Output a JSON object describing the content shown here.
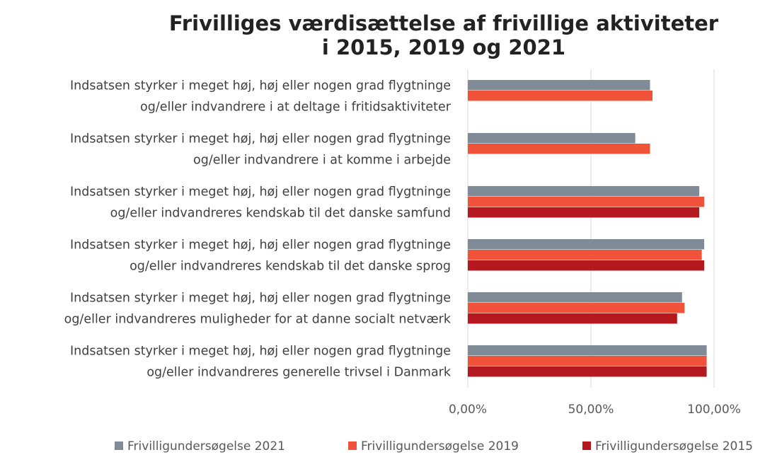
{
  "chart_data": {
    "type": "barh",
    "title": [
      "Frivilliges værdisættelse af frivillige aktiviteter",
      "i 2015, 2019 og 2021"
    ],
    "categories": [
      [
        "Indsatsen styrker i meget høj, høj eller nogen grad flygtninge",
        "og/eller indvandrere i at deltage i fritidsaktiviteter"
      ],
      [
        "Indsatsen styrker i meget høj, høj eller nogen grad flygtninge",
        "og/eller indvandrere i at komme i arbejde"
      ],
      [
        "Indsatsen styrker i meget høj, høj eller nogen grad flygtninge",
        "og/eller indvandreres kendskab til det danske samfund"
      ],
      [
        "Indsatsen styrker i meget høj, høj eller nogen grad flygtninge",
        "og/eller indvandreres kendskab til det danske sprog"
      ],
      [
        "Indsatsen styrker i meget høj, høj eller nogen grad flygtninge",
        "og/eller indvandreres muligheder for at danne socialt netværk"
      ],
      [
        "Indsatsen styrker i meget høj, høj eller nogen grad flygtninge",
        "og/eller indvandreres generelle trivsel i Danmark"
      ]
    ],
    "series": [
      {
        "name": "Frivilligundersøgelse 2021",
        "color": "#7f8c97",
        "values": [
          74,
          68,
          94,
          96,
          87,
          97
        ]
      },
      {
        "name": "Frivilligundersøgelse 2019",
        "color": "#f0533a",
        "values": [
          75,
          74,
          96,
          95,
          88,
          97
        ]
      },
      {
        "name": "Frivilligundersøgelse 2015",
        "color": "#b5191f",
        "values": [
          null,
          null,
          94,
          96,
          85,
          97
        ]
      }
    ],
    "xlim": [
      0,
      100
    ],
    "xticks": [
      {
        "value": 0,
        "label": "0,00%"
      },
      {
        "value": 50,
        "label": "50,00%"
      },
      {
        "value": 100,
        "label": "100,00%"
      }
    ],
    "grid": true,
    "legend": "bottom"
  }
}
